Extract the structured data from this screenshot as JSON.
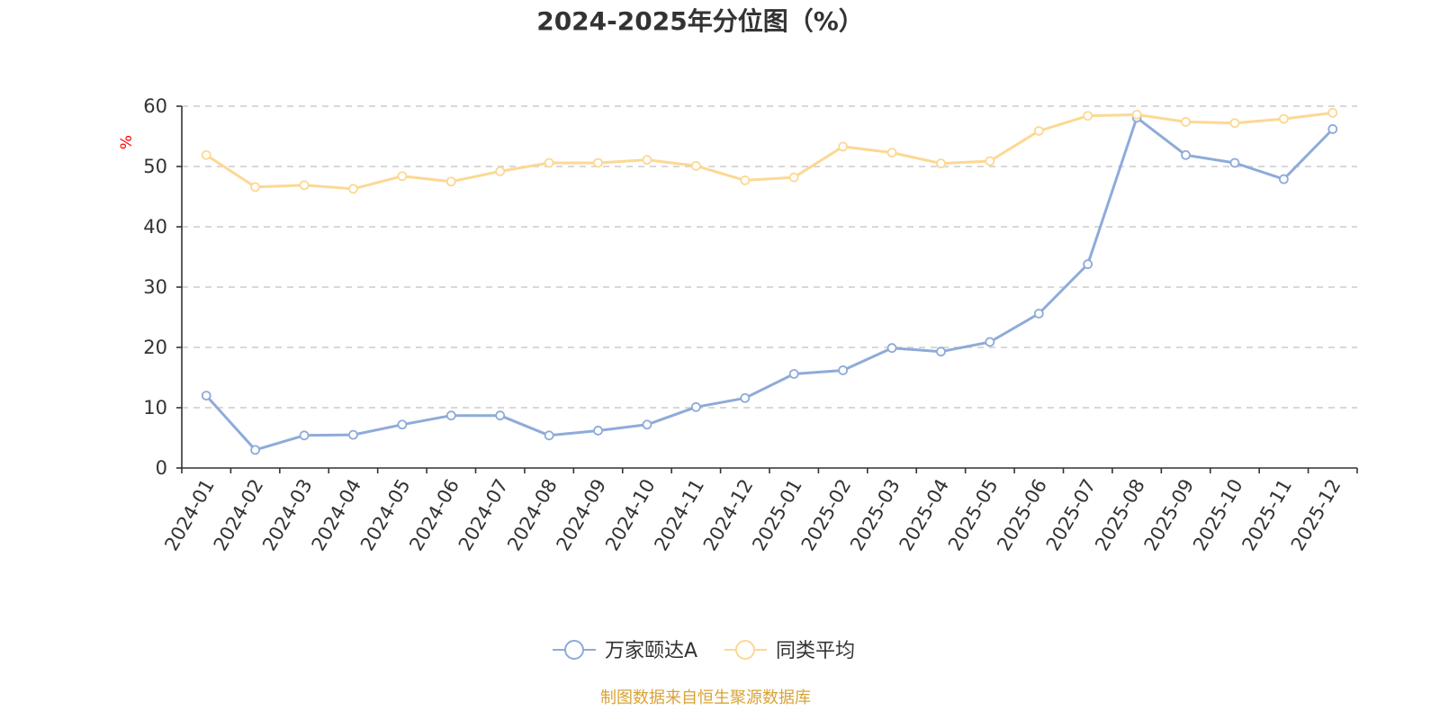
{
  "colors": {
    "ylabel": "#ff0000",
    "source_text": "#d9a336"
  },
  "source": "制图数据来自恒生聚源数据库",
  "chart_data": {
    "type": "line",
    "title": "2024-2025年分位图（%）",
    "xlabel": "",
    "ylabel": "%",
    "ylim": [
      0,
      60
    ],
    "yticks": [
      0,
      10,
      20,
      30,
      40,
      50,
      60
    ],
    "grid": true,
    "legend_position": "bottom",
    "categories": [
      "2024-01",
      "2024-02",
      "2024-03",
      "2024-04",
      "2024-05",
      "2024-06",
      "2024-07",
      "2024-08",
      "2024-09",
      "2024-10",
      "2024-11",
      "2024-12",
      "2025-01",
      "2025-02",
      "2025-03",
      "2025-04",
      "2025-05",
      "2025-06",
      "2025-07",
      "2025-08",
      "2025-09",
      "2025-10",
      "2025-11",
      "2025-12"
    ],
    "series": [
      {
        "name": "万家颐达A",
        "color": "#8eabd9",
        "values": [
          12.0,
          3.0,
          5.4,
          5.5,
          7.2,
          8.7,
          8.7,
          5.4,
          6.2,
          7.2,
          10.1,
          11.6,
          15.6,
          16.2,
          19.9,
          19.3,
          20.9,
          25.6,
          33.8,
          58.1,
          51.9,
          50.6,
          47.9,
          56.2
        ]
      },
      {
        "name": "同类平均",
        "color": "#fcd893",
        "values": [
          51.9,
          46.6,
          46.9,
          46.3,
          48.4,
          47.5,
          49.2,
          50.6,
          50.6,
          51.1,
          50.1,
          47.7,
          48.2,
          53.3,
          52.3,
          50.5,
          50.9,
          55.9,
          58.4,
          58.6,
          57.4,
          57.2,
          57.9,
          58.9
        ]
      }
    ]
  }
}
